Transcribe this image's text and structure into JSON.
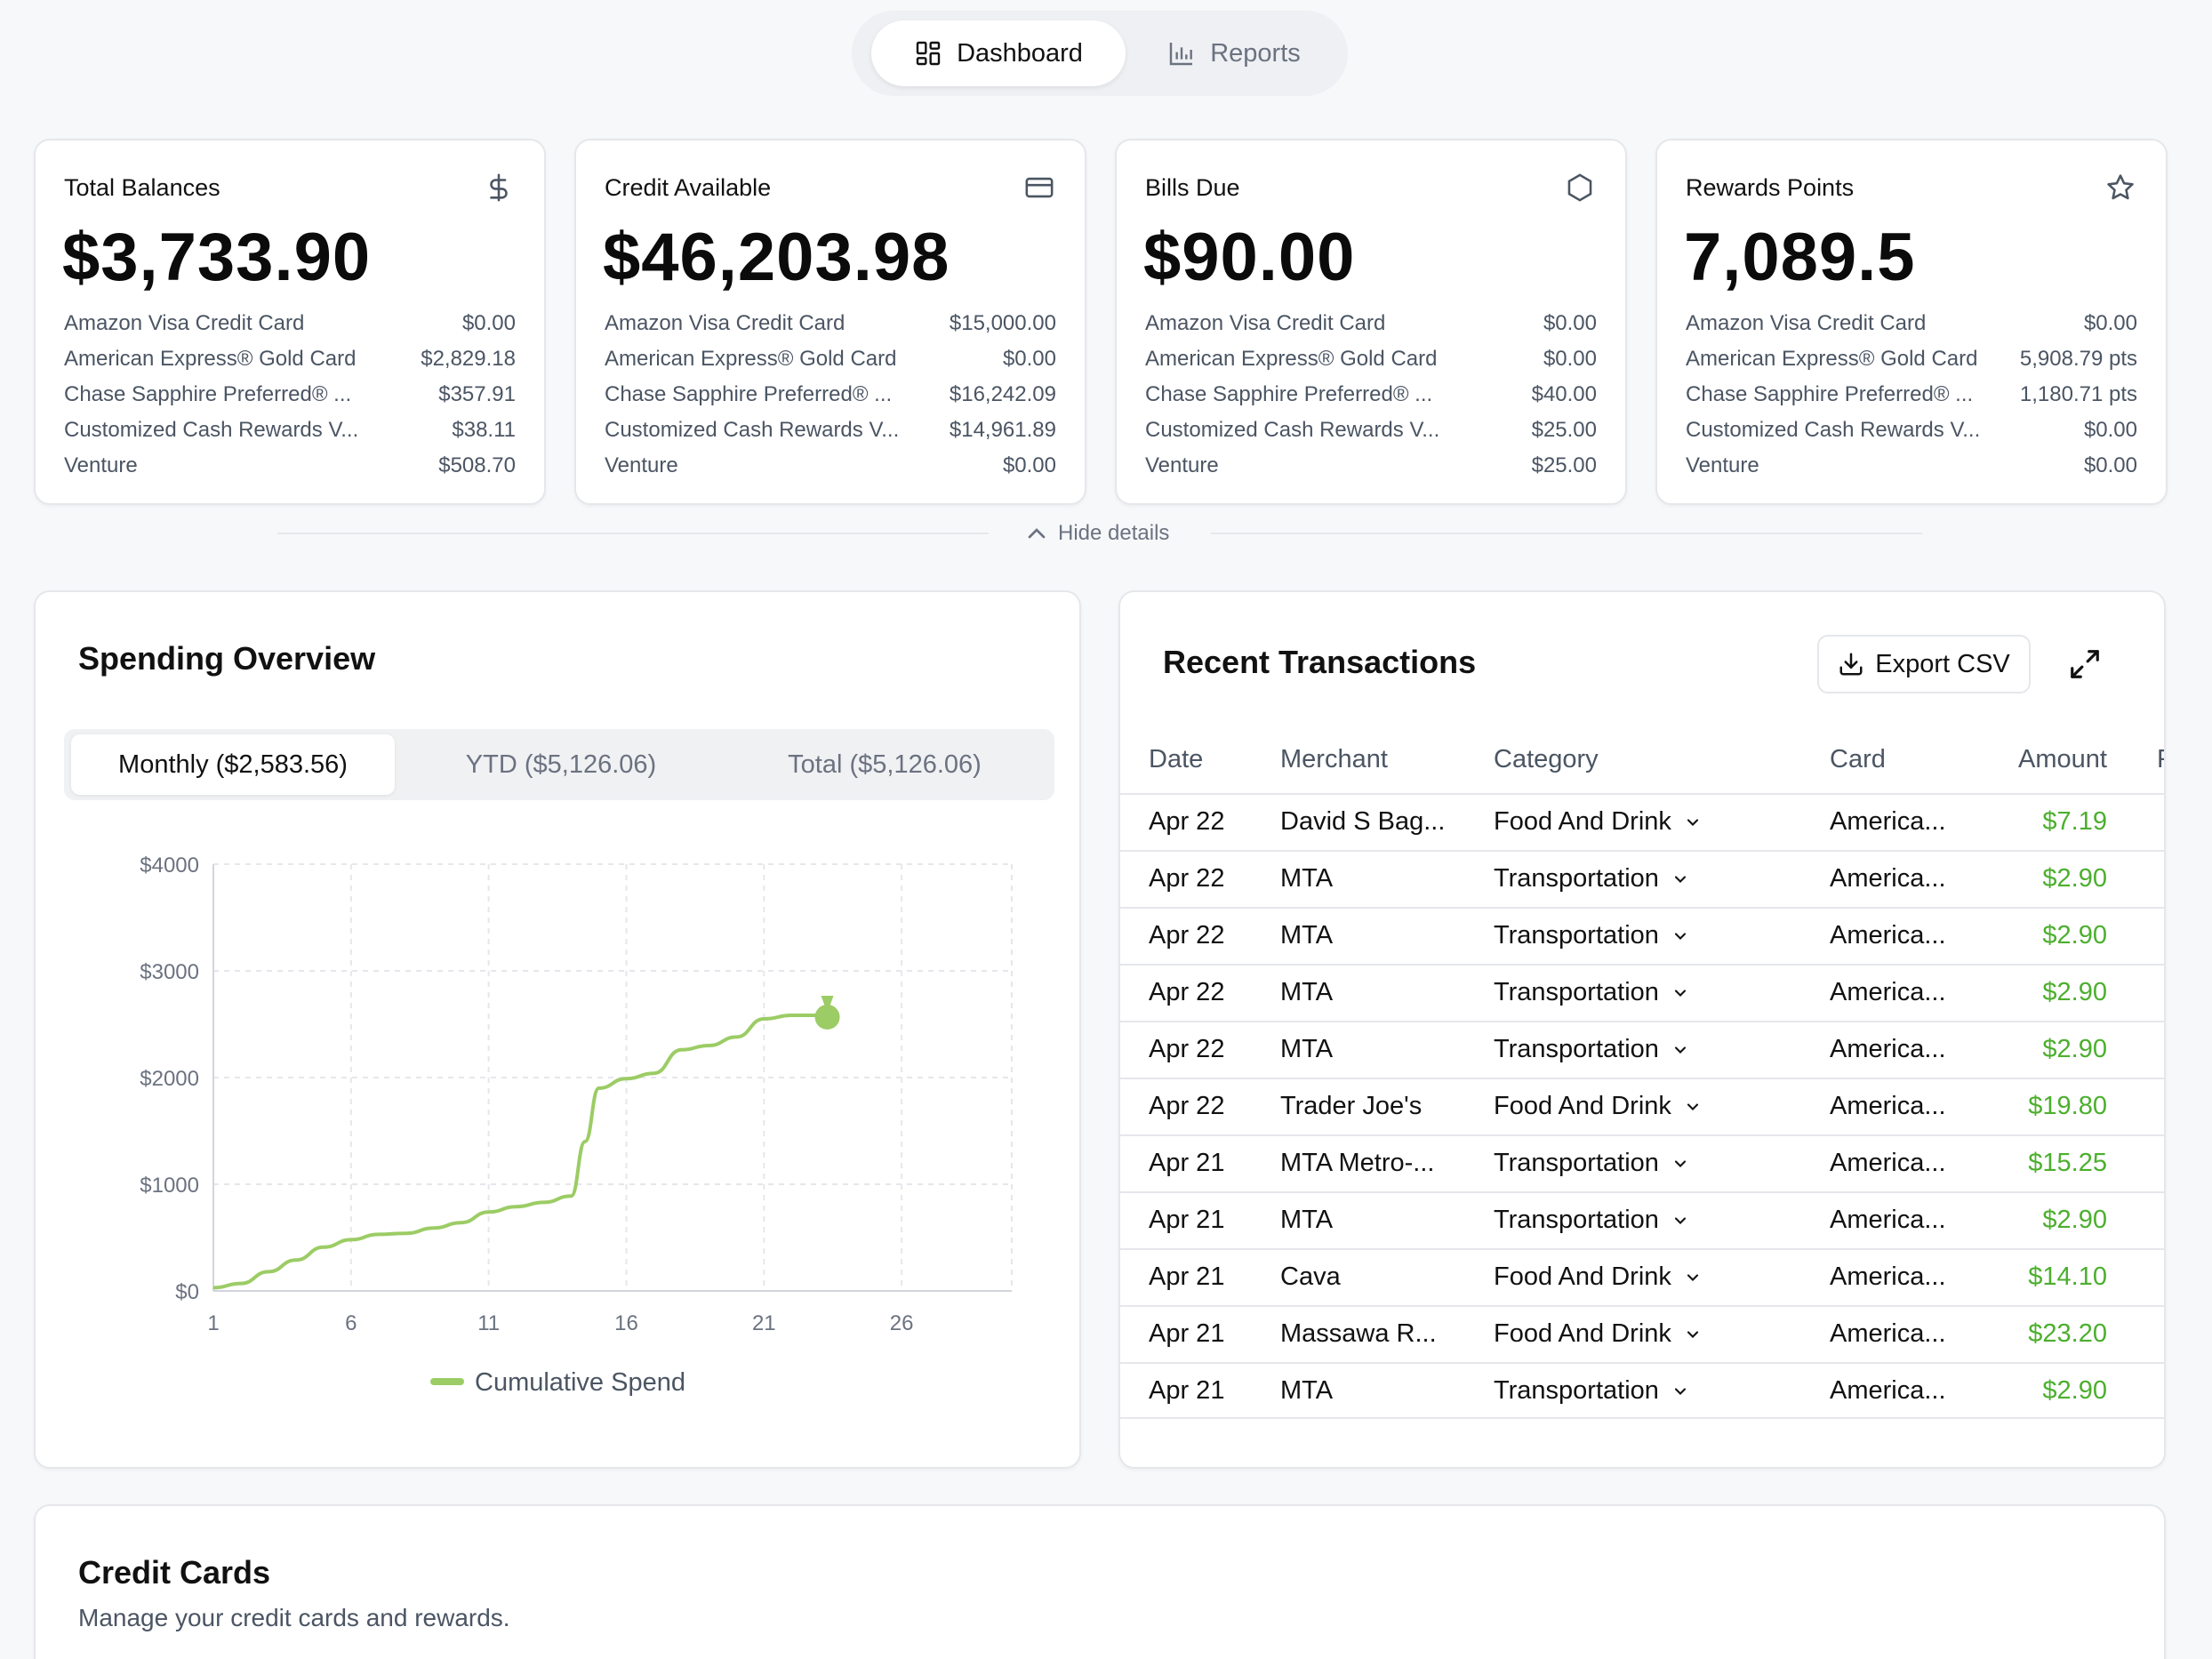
{
  "nav": {
    "dashboard_label": "Dashboard",
    "reports_label": "Reports"
  },
  "summary_cards": [
    {
      "title": "Total Balances",
      "icon": "dollar-icon",
      "value": "$3,733.90",
      "rows": [
        {
          "name": "Amazon Visa Credit Card",
          "amount": "$0.00"
        },
        {
          "name": "American Express® Gold Card",
          "amount": "$2,829.18"
        },
        {
          "name": "Chase Sapphire Preferred® ...",
          "amount": "$357.91"
        },
        {
          "name": "Customized Cash Rewards V...",
          "amount": "$38.11"
        },
        {
          "name": "Venture",
          "amount": "$508.70"
        }
      ]
    },
    {
      "title": "Credit Available",
      "icon": "credit-card-icon",
      "value": "$46,203.98",
      "rows": [
        {
          "name": "Amazon Visa Credit Card",
          "amount": "$15,000.00"
        },
        {
          "name": "American Express® Gold Card",
          "amount": "$0.00"
        },
        {
          "name": "Chase Sapphire Preferred® ...",
          "amount": "$16,242.09"
        },
        {
          "name": "Customized Cash Rewards V...",
          "amount": "$14,961.89"
        },
        {
          "name": "Venture",
          "amount": "$0.00"
        }
      ]
    },
    {
      "title": "Bills Due",
      "icon": "hexagon-icon",
      "value": "$90.00",
      "rows": [
        {
          "name": "Amazon Visa Credit Card",
          "amount": "$0.00"
        },
        {
          "name": "American Express® Gold Card",
          "amount": "$0.00"
        },
        {
          "name": "Chase Sapphire Preferred® ...",
          "amount": "$40.00"
        },
        {
          "name": "Customized Cash Rewards V...",
          "amount": "$25.00"
        },
        {
          "name": "Venture",
          "amount": "$25.00"
        }
      ]
    },
    {
      "title": "Rewards Points",
      "icon": "star-icon",
      "value": "7,089.5",
      "rows": [
        {
          "name": "Amazon Visa Credit Card",
          "amount": "$0.00"
        },
        {
          "name": "American Express® Gold Card",
          "amount": "5,908.79 pts"
        },
        {
          "name": "Chase Sapphire Preferred® ...",
          "amount": "1,180.71 pts"
        },
        {
          "name": "Customized Cash Rewards V...",
          "amount": "$0.00"
        },
        {
          "name": "Venture",
          "amount": "$0.00"
        }
      ]
    }
  ],
  "hide_details_label": "Hide details",
  "spending": {
    "title": "Spending Overview",
    "tabs": [
      "Monthly ($2,583.56)",
      "YTD ($5,126.06)",
      "Total ($5,126.06)"
    ],
    "legend_label": "Cumulative Spend"
  },
  "chart_data": {
    "type": "line",
    "title": "",
    "xlabel": "",
    "ylabel": "",
    "x_ticks": [
      "1",
      "6",
      "11",
      "16",
      "21",
      "26"
    ],
    "y_ticks": [
      "$0",
      "$1000",
      "$2000",
      "$3000",
      "$4000"
    ],
    "xlim": [
      1,
      30
    ],
    "ylim": [
      0,
      4000
    ],
    "grid": true,
    "legend": "bottom",
    "series": [
      {
        "name": "Cumulative Spend",
        "color": "#9ccc65",
        "x": [
          1,
          2,
          3,
          4,
          5,
          6,
          7,
          8,
          9,
          10,
          11,
          12,
          13,
          14,
          14.5,
          15,
          16,
          17,
          18,
          19,
          20,
          21,
          22,
          23,
          23.3
        ],
        "y": [
          30,
          70,
          180,
          290,
          410,
          480,
          530,
          540,
          590,
          640,
          740,
          790,
          830,
          890,
          1400,
          1900,
          1990,
          2040,
          2260,
          2300,
          2380,
          2550,
          2583,
          2583,
          2583.56
        ]
      }
    ],
    "end_marker": "money-bag-icon"
  },
  "transactions": {
    "title": "Recent Transactions",
    "export_label": "Export CSV",
    "columns": [
      "Date",
      "Merchant",
      "Category",
      "Card",
      "Amount",
      "F"
    ],
    "rows": [
      {
        "date": "Apr 22",
        "merchant": "David S Bag...",
        "category": "Food And Drink",
        "card": "America...",
        "amount": "$7.19"
      },
      {
        "date": "Apr 22",
        "merchant": "MTA",
        "category": "Transportation",
        "card": "America...",
        "amount": "$2.90"
      },
      {
        "date": "Apr 22",
        "merchant": "MTA",
        "category": "Transportation",
        "card": "America...",
        "amount": "$2.90"
      },
      {
        "date": "Apr 22",
        "merchant": "MTA",
        "category": "Transportation",
        "card": "America...",
        "amount": "$2.90"
      },
      {
        "date": "Apr 22",
        "merchant": "MTA",
        "category": "Transportation",
        "card": "America...",
        "amount": "$2.90"
      },
      {
        "date": "Apr 22",
        "merchant": "Trader Joe's",
        "category": "Food And Drink",
        "card": "America...",
        "amount": "$19.80"
      },
      {
        "date": "Apr 21",
        "merchant": "MTA Metro-...",
        "category": "Transportation",
        "card": "America...",
        "amount": "$15.25"
      },
      {
        "date": "Apr 21",
        "merchant": "MTA",
        "category": "Transportation",
        "card": "America...",
        "amount": "$2.90"
      },
      {
        "date": "Apr 21",
        "merchant": "Cava",
        "category": "Food And Drink",
        "card": "America...",
        "amount": "$14.10"
      },
      {
        "date": "Apr 21",
        "merchant": "Massawa R...",
        "category": "Food And Drink",
        "card": "America...",
        "amount": "$23.20"
      },
      {
        "date": "Apr 21",
        "merchant": "MTA",
        "category": "Transportation",
        "card": "America...",
        "amount": "$2.90"
      }
    ]
  },
  "credit_cards": {
    "title": "Credit Cards",
    "subtitle": "Manage your credit cards and rewards."
  },
  "colors": {
    "accent_green": "#9ccc65",
    "amount_green": "#4caf2e",
    "border": "#e5e7eb",
    "muted_text": "#6b7280"
  }
}
